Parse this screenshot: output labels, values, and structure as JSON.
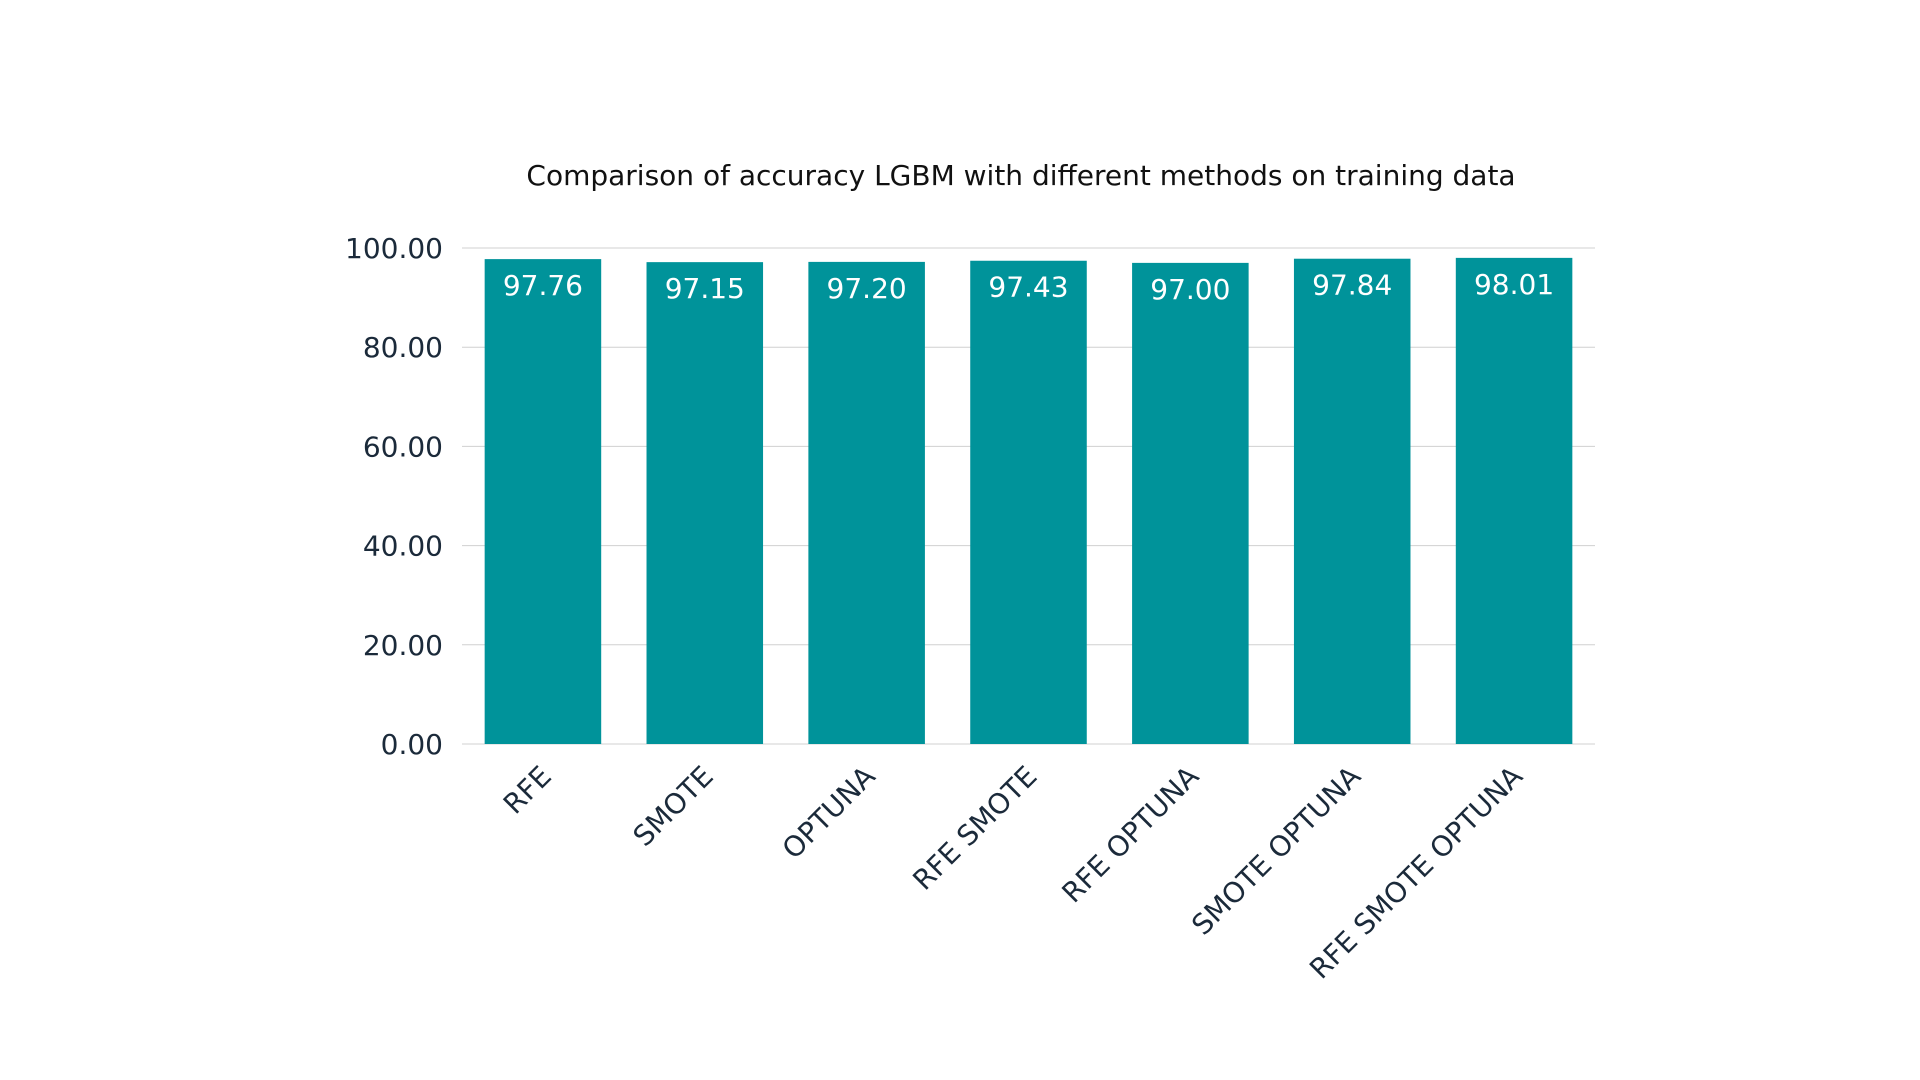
{
  "chart_data": {
    "type": "bar",
    "title": "Comparison of accuracy LGBM with different methods on training data",
    "xlabel": "",
    "ylabel": "",
    "categories": [
      "RFE",
      "SMOTE",
      "OPTUNA",
      "RFE SMOTE",
      "RFE OPTUNA",
      "SMOTE OPTUNA",
      "RFE SMOTE OPTUNA"
    ],
    "values": [
      97.76,
      97.15,
      97.2,
      97.43,
      97.0,
      97.84,
      98.01
    ],
    "data_labels": [
      "97.76",
      "97.15",
      "97.20",
      "97.43",
      "97.00",
      "97.84",
      "98.01"
    ],
    "ylim": [
      0,
      100
    ],
    "yticks": [
      0,
      20,
      40,
      60,
      80,
      100
    ],
    "ytick_labels": [
      "0.00",
      "20.00",
      "40.00",
      "60.00",
      "80.00",
      "100.00"
    ],
    "grid": true,
    "legend": "none",
    "bar_color": "#00939a",
    "grid_color": "#d0d0d0"
  }
}
